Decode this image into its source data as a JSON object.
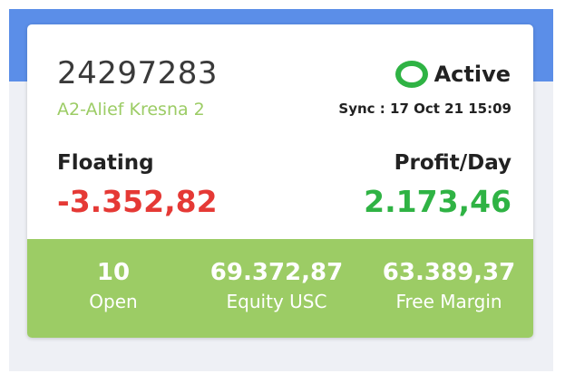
{
  "account": {
    "number": "24297283",
    "name": "A2-Alief Kresna 2"
  },
  "status": {
    "label": "Active",
    "icon": "status-dot-icon",
    "color": "#2fb344",
    "sync": "Sync : 17 Oct 21 15:09"
  },
  "floating": {
    "label": "Floating",
    "value": "-3.352,82",
    "color": "#e53935"
  },
  "profit_day": {
    "label": "Profit/Day",
    "value": "2.173,46",
    "color": "#2fb344"
  },
  "stats": {
    "open": {
      "value": "10",
      "label": "Open"
    },
    "equity": {
      "value": "69.372,87",
      "label": "Equity USC"
    },
    "free_margin": {
      "value": "63.389,37",
      "label": "Free Margin"
    }
  },
  "colors": {
    "header_blue": "#5b8ee8",
    "accent_green": "#9ccc65",
    "page_bg": "#eef0f5"
  }
}
